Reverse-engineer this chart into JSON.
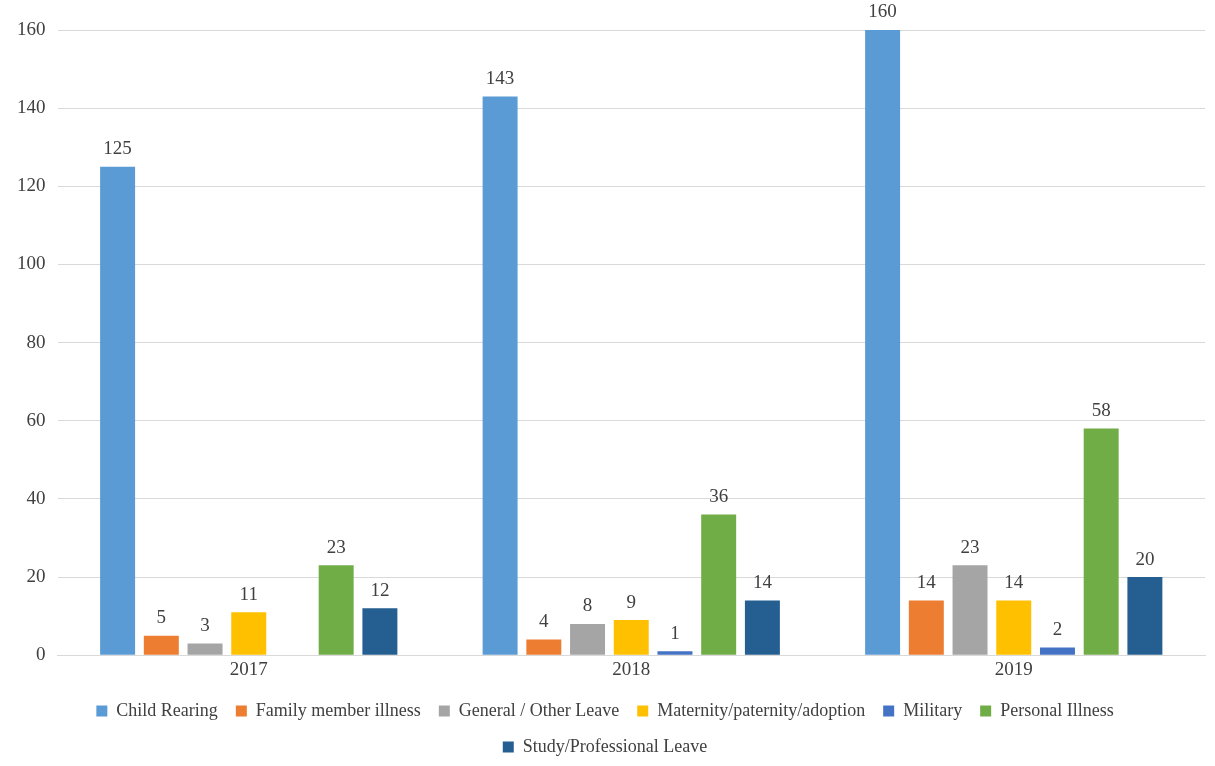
{
  "chart_data": {
    "type": "bar",
    "categories": [
      "2017",
      "2018",
      "2019"
    ],
    "series": [
      {
        "name": "Child Rearing",
        "color": "#5b9bd5",
        "values": [
          125,
          143,
          160
        ]
      },
      {
        "name": "Family member illness",
        "color": "#ed7d31",
        "values": [
          5,
          4,
          14
        ]
      },
      {
        "name": "General / Other Leave",
        "color": "#a5a5a5",
        "values": [
          3,
          8,
          23
        ]
      },
      {
        "name": "Maternity/paternity/adoption",
        "color": "#ffc000",
        "values": [
          11,
          9,
          14
        ]
      },
      {
        "name": "Military",
        "color": "#4472c4",
        "values": [
          null,
          1,
          2
        ]
      },
      {
        "name": "Personal Illness",
        "color": "#70ad47",
        "values": [
          23,
          36,
          58
        ]
      },
      {
        "name": "Study/Professional Leave",
        "color": "#255e91",
        "values": [
          12,
          14,
          20
        ]
      }
    ],
    "ylim": [
      0,
      160
    ],
    "yticks": [
      0,
      20,
      40,
      60,
      80,
      100,
      120,
      140,
      160
    ],
    "grid": "y",
    "legend": "bottom",
    "data_labels": true
  }
}
